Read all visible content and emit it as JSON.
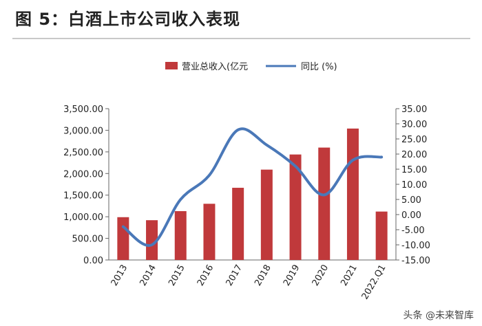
{
  "header": {
    "title": "图 5：白酒上市公司收入表现"
  },
  "watermark": "头条 @未来智库",
  "colors": {
    "bar": "#c0393b",
    "line": "#4a78b8"
  },
  "chart_data": {
    "type": "bar",
    "categories": [
      "2013",
      "2014",
      "2015",
      "2016",
      "2017",
      "2018",
      "2019",
      "2020",
      "2021",
      "2022.Q1"
    ],
    "series": [
      {
        "name": "营业总收入(亿元",
        "kind": "bar",
        "axis": "left",
        "values": [
          990,
          920,
          1130,
          1300,
          1670,
          2090,
          2440,
          2600,
          3040,
          1120
        ]
      },
      {
        "name": "同比 (%)",
        "kind": "line",
        "axis": "right",
        "values": [
          -4,
          -10,
          5,
          13,
          28,
          23,
          16,
          6.5,
          18,
          19
        ]
      }
    ],
    "left_axis": {
      "ylim": [
        0,
        3500
      ],
      "tick_labels": [
        "0.00",
        "500.00",
        "1,000.00",
        "1,500.00",
        "2,000.00",
        "2,500.00",
        "3,000.00",
        "3,500.00"
      ]
    },
    "right_axis": {
      "ylim": [
        -15,
        35
      ],
      "tick_labels": [
        "-15.00",
        "-10.00",
        "-5.00",
        "0.00",
        "5.00",
        "10.00",
        "15.00",
        "20.00",
        "25.00",
        "30.00",
        "35.00"
      ]
    },
    "legend": "top-center"
  }
}
